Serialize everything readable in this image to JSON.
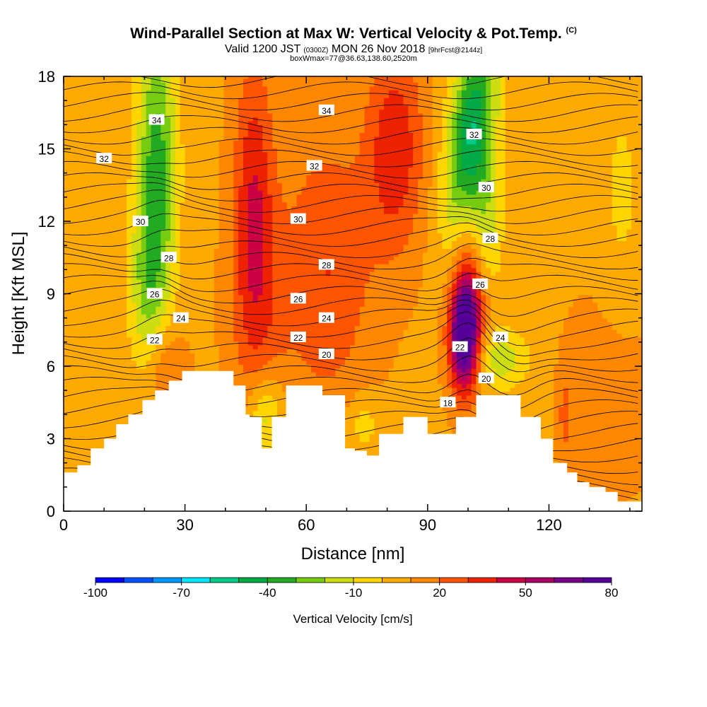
{
  "header": {
    "title": "Wind-Parallel Section at Max W: Vertical Velocity & Pot.Temp.",
    "title_mark": "(C)",
    "valid_prefix": "Valid 1200 JST",
    "valid_zulu": "(0300Z)",
    "valid_date": "MON 26 Nov 2018",
    "forecast": "[9hrFcst@2144z]",
    "box_info": "boxWmax=77@36.63,138.60,2520m"
  },
  "chart_data": {
    "type": "heatmap",
    "xlabel": "Distance [nm]",
    "ylabel": "Height [Kft MSL]",
    "xlim": [
      0,
      143
    ],
    "ylim": [
      0,
      18
    ],
    "x_ticks": [
      0,
      30,
      60,
      90,
      120
    ],
    "y_ticks": [
      0,
      3,
      6,
      9,
      12,
      15,
      18
    ],
    "fill_variable": "Vertical Velocity [cm/s]",
    "contour_variable": "Potential temperature",
    "colorbar": {
      "label": "Vertical Velocity [cm/s]",
      "tick_labels": [
        "-100",
        "-70",
        "-40",
        "-10",
        "20",
        "50",
        "80"
      ],
      "levels": [
        -100,
        -90,
        -80,
        -70,
        -60,
        -50,
        -40,
        -30,
        -20,
        -10,
        0,
        10,
        20,
        30,
        40,
        50,
        60,
        70,
        80
      ],
      "colors": [
        "#0000ff",
        "#0050ff",
        "#0096ff",
        "#00e6ff",
        "#00cc88",
        "#00aa44",
        "#22aa22",
        "#77cc11",
        "#ccdd11",
        "#ffd500",
        "#ffaa00",
        "#ff8800",
        "#ff5500",
        "#ee2200",
        "#cc0044",
        "#aa0066",
        "#770088",
        "#550099"
      ]
    },
    "contour_labels": [
      {
        "text": "34",
        "x": 23,
        "y": 16.2
      },
      {
        "text": "34",
        "x": 65,
        "y": 16.6
      },
      {
        "text": "32",
        "x": 10,
        "y": 14.6
      },
      {
        "text": "32",
        "x": 62,
        "y": 14.3
      },
      {
        "text": "32",
        "x": 101.5,
        "y": 15.6
      },
      {
        "text": "30",
        "x": 19,
        "y": 12.0
      },
      {
        "text": "30",
        "x": 58,
        "y": 12.1
      },
      {
        "text": "30",
        "x": 104.5,
        "y": 13.4
      },
      {
        "text": "28",
        "x": 26,
        "y": 10.5
      },
      {
        "text": "28",
        "x": 65,
        "y": 10.2
      },
      {
        "text": "28",
        "x": 105.5,
        "y": 11.3
      },
      {
        "text": "26",
        "x": 22.5,
        "y": 9.0
      },
      {
        "text": "26",
        "x": 58,
        "y": 8.8
      },
      {
        "text": "26",
        "x": 103,
        "y": 9.4
      },
      {
        "text": "24",
        "x": 29,
        "y": 8.0
      },
      {
        "text": "24",
        "x": 65,
        "y": 8.0
      },
      {
        "text": "24",
        "x": 108,
        "y": 7.2
      },
      {
        "text": "22",
        "x": 22.5,
        "y": 7.1
      },
      {
        "text": "22",
        "x": 58,
        "y": 7.2
      },
      {
        "text": "22",
        "x": 98,
        "y": 6.8
      },
      {
        "text": "20",
        "x": 65,
        "y": 6.5
      },
      {
        "text": "20",
        "x": 104.5,
        "y": 5.5
      },
      {
        "text": "18",
        "x": 95,
        "y": 4.5
      }
    ],
    "terrain_height_kft": [
      [
        0,
        1.6
      ],
      [
        3.4,
        1.9
      ],
      [
        6.7,
        2.6
      ],
      [
        10,
        3.0
      ],
      [
        13,
        3.6
      ],
      [
        16,
        4.0
      ],
      [
        19.5,
        4.6
      ],
      [
        22.6,
        5.0
      ],
      [
        26,
        5.4
      ],
      [
        29.3,
        5.8
      ],
      [
        32.6,
        5.8
      ],
      [
        42,
        5.2
      ],
      [
        45,
        4.0
      ],
      [
        46,
        3.9
      ],
      [
        49,
        2.6
      ],
      [
        51,
        2.6
      ],
      [
        51.5,
        3.9
      ],
      [
        55,
        5.2
      ],
      [
        58,
        5.2
      ],
      [
        64,
        4.8
      ],
      [
        69.6,
        2.6
      ],
      [
        72,
        2.5
      ],
      [
        75,
        2.3
      ],
      [
        78,
        3.2
      ],
      [
        84,
        3.9
      ],
      [
        90,
        3.2
      ],
      [
        95,
        3.2
      ],
      [
        97,
        3.9
      ],
      [
        102,
        4.8
      ],
      [
        109,
        4.8
      ],
      [
        113,
        3.9
      ],
      [
        118,
        3.0
      ],
      [
        121,
        2.0
      ],
      [
        124.5,
        1.6
      ],
      [
        127,
        1.2
      ],
      [
        130,
        1.0
      ],
      [
        134,
        0.8
      ],
      [
        137,
        0.4
      ],
      [
        143,
        0.4
      ]
    ]
  }
}
